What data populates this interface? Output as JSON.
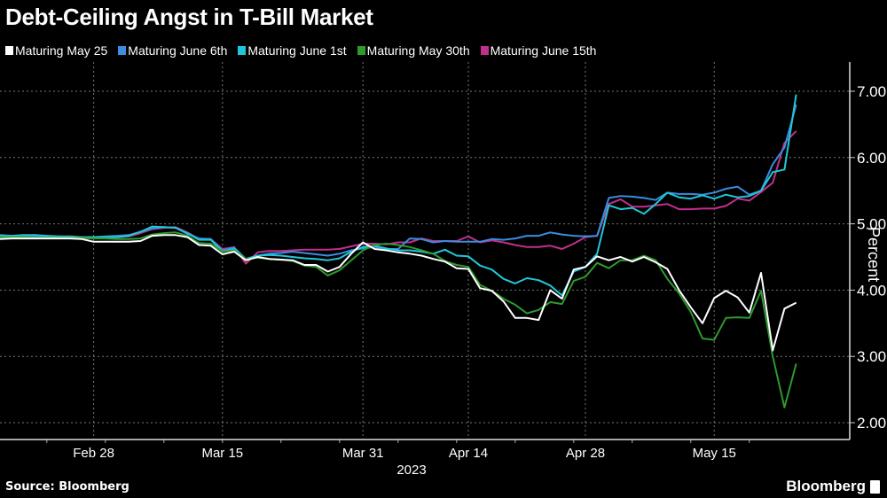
{
  "chart_data": {
    "type": "line",
    "title": "Debt-Ceiling Angst in T-Bill Market",
    "xlabel": "2023",
    "ylabel": "Percent",
    "ylim": [
      2,
      7
    ],
    "y_ticks": [
      "2.00",
      "3.00",
      "4.00",
      "5.00",
      "6.00",
      "7.00"
    ],
    "x_unit": "trading-day index",
    "x_ticks": [
      {
        "label": "Feb 28",
        "x": 8
      },
      {
        "label": "Mar 15",
        "x": 19
      },
      {
        "label": "Mar 31",
        "x": 31
      },
      {
        "label": "Apr 14",
        "x": 40
      },
      {
        "label": "Apr 28",
        "x": 50
      },
      {
        "label": "May 15",
        "x": 61
      }
    ],
    "grid": true,
    "legend_position": "top-left",
    "series": [
      {
        "name": "Maturing May 25",
        "color": "#ffffff",
        "values": [
          4.77,
          4.78,
          4.78,
          4.78,
          4.78,
          4.78,
          4.78,
          4.77,
          4.73,
          4.73,
          4.73,
          4.73,
          4.74,
          4.82,
          4.83,
          4.83,
          4.8,
          4.68,
          4.67,
          4.54,
          4.58,
          4.45,
          4.5,
          4.47,
          4.46,
          4.45,
          4.38,
          4.38,
          4.28,
          4.35,
          4.55,
          4.72,
          4.62,
          4.6,
          4.57,
          4.55,
          4.52,
          4.47,
          4.43,
          4.33,
          4.32,
          4.03,
          3.99,
          3.83,
          3.58,
          3.58,
          3.55,
          4.0,
          3.87,
          4.31,
          4.35,
          4.51,
          4.45,
          4.5,
          4.43,
          4.5,
          4.42,
          4.32,
          4.0,
          3.74,
          3.5,
          3.88,
          3.99,
          3.89,
          3.66,
          4.26,
          3.09,
          3.72,
          3.81
        ]
      },
      {
        "name": "Maturing June 6th",
        "color": "#3a8de0",
        "values": [
          4.83,
          4.82,
          4.82,
          4.81,
          4.81,
          4.81,
          4.8,
          4.8,
          4.8,
          4.81,
          4.82,
          4.83,
          4.88,
          4.93,
          4.95,
          4.94,
          4.85,
          4.78,
          4.77,
          4.6,
          4.64,
          4.47,
          4.52,
          4.55,
          4.56,
          4.58,
          4.56,
          4.54,
          4.52,
          4.55,
          4.6,
          4.63,
          4.65,
          4.62,
          4.62,
          4.78,
          4.77,
          4.72,
          4.74,
          4.73,
          4.73,
          4.73,
          4.77,
          4.76,
          4.78,
          4.82,
          4.82,
          4.87,
          4.84,
          4.82,
          4.81,
          4.82,
          5.39,
          5.42,
          5.41,
          5.39,
          5.36,
          5.47,
          5.45,
          5.45,
          5.44,
          5.47,
          5.53,
          5.56,
          5.44,
          5.5,
          5.9,
          6.15,
          6.8
        ]
      },
      {
        "name": "Maturing June 1st",
        "color": "#1fc8d8",
        "values": [
          4.82,
          4.82,
          4.83,
          4.83,
          4.82,
          4.81,
          4.81,
          4.8,
          4.8,
          4.8,
          4.8,
          4.82,
          4.88,
          4.96,
          4.95,
          4.94,
          4.86,
          4.76,
          4.76,
          4.58,
          4.62,
          4.47,
          4.52,
          4.53,
          4.52,
          4.5,
          4.48,
          4.47,
          4.45,
          4.48,
          4.58,
          4.65,
          4.67,
          4.63,
          4.6,
          4.6,
          4.58,
          4.55,
          4.61,
          4.52,
          4.51,
          4.37,
          4.31,
          4.17,
          4.1,
          4.18,
          4.15,
          4.07,
          3.92,
          4.28,
          4.35,
          4.55,
          5.28,
          5.22,
          5.24,
          5.15,
          5.3,
          5.47,
          5.4,
          5.38,
          5.43,
          5.38,
          5.44,
          5.4,
          5.42,
          5.5,
          5.78,
          5.82,
          6.95
        ]
      },
      {
        "name": "Maturing May 30th",
        "color": "#2e9a2e",
        "values": [
          4.8,
          4.8,
          4.8,
          4.79,
          4.79,
          4.79,
          4.79,
          4.79,
          4.78,
          4.78,
          4.77,
          4.77,
          4.78,
          4.84,
          4.86,
          4.87,
          4.82,
          4.71,
          4.7,
          4.58,
          4.6,
          4.47,
          4.49,
          4.47,
          4.46,
          4.44,
          4.37,
          4.35,
          4.22,
          4.3,
          4.45,
          4.6,
          4.68,
          4.7,
          4.68,
          4.65,
          4.6,
          4.55,
          4.44,
          4.38,
          4.35,
          4.08,
          3.99,
          3.87,
          3.78,
          3.65,
          3.7,
          3.82,
          3.79,
          4.14,
          4.2,
          4.41,
          4.33,
          4.45,
          4.45,
          4.52,
          4.45,
          4.17,
          3.95,
          3.67,
          3.27,
          3.25,
          3.58,
          3.59,
          3.58,
          3.99,
          3.0,
          2.23,
          2.89
        ]
      },
      {
        "name": "Maturing June 15th",
        "color": "#c0308c",
        "values": [
          4.8,
          4.8,
          4.8,
          4.79,
          4.79,
          4.79,
          4.78,
          4.78,
          4.78,
          4.79,
          4.8,
          4.81,
          4.86,
          4.92,
          4.94,
          4.95,
          4.87,
          4.77,
          4.77,
          4.62,
          4.65,
          4.4,
          4.57,
          4.59,
          4.59,
          4.6,
          4.61,
          4.61,
          4.61,
          4.62,
          4.66,
          4.7,
          4.7,
          4.69,
          4.72,
          4.72,
          4.78,
          4.74,
          4.74,
          4.74,
          4.81,
          4.72,
          4.75,
          4.72,
          4.68,
          4.65,
          4.65,
          4.67,
          4.62,
          4.7,
          4.8,
          4.82,
          5.3,
          5.37,
          5.26,
          5.26,
          5.28,
          5.3,
          5.22,
          5.22,
          5.23,
          5.23,
          5.27,
          5.38,
          5.35,
          5.48,
          5.62,
          6.22,
          6.4
        ]
      }
    ]
  },
  "footer": {
    "source": "Source: Bloomberg",
    "brand": "Bloomberg"
  }
}
